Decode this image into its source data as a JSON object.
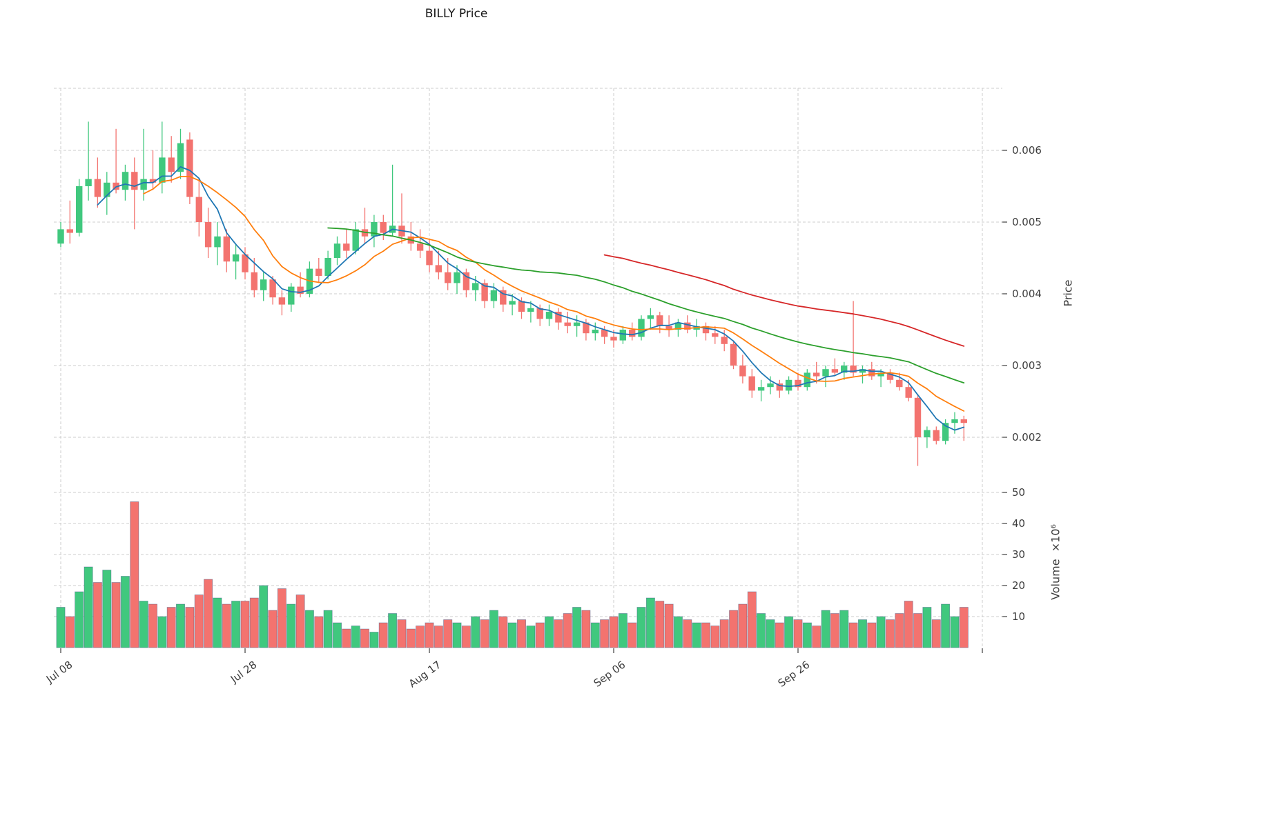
{
  "title": "BILLY Price",
  "axes": {
    "price_label": "Price",
    "volume_label": "Volume  ×10⁶"
  },
  "chart_data": {
    "type": "candlestick_with_volume",
    "title": "BILLY Price",
    "x_axis": {
      "tick_positions": [
        0,
        20,
        40,
        60,
        80,
        100
      ],
      "tick_labels": [
        "Jul 08",
        "Jul 28",
        "Aug 17",
        "Sep 06",
        "Sep 26",
        ""
      ]
    },
    "price_axis": {
      "label": "Price",
      "tick_values": [
        0.002,
        0.003,
        0.004,
        0.005,
        0.006
      ],
      "tick_labels": [
        "0.002",
        "0.003",
        "0.004",
        "0.005",
        "0.006"
      ]
    },
    "volume_axis": {
      "label": "Volume  ×10⁶",
      "unit": "1e6",
      "tick_values": [
        10,
        20,
        30,
        40,
        50
      ],
      "tick_labels": [
        "10",
        "20",
        "30",
        "40",
        "50"
      ]
    },
    "candles": {
      "open": [
        0.0047,
        0.0049,
        0.00485,
        0.0055,
        0.0056,
        0.00535,
        0.00555,
        0.00545,
        0.0057,
        0.00545,
        0.0056,
        0.00555,
        0.0059,
        0.0057,
        0.00615,
        0.00535,
        0.005,
        0.00465,
        0.0048,
        0.00445,
        0.00455,
        0.0043,
        0.00405,
        0.0042,
        0.00395,
        0.00385,
        0.0041,
        0.004,
        0.00435,
        0.00425,
        0.0045,
        0.0047,
        0.0046,
        0.0049,
        0.0048,
        0.005,
        0.00485,
        0.00495,
        0.0048,
        0.0047,
        0.0046,
        0.0044,
        0.0043,
        0.00415,
        0.0043,
        0.00405,
        0.00415,
        0.0039,
        0.00405,
        0.00385,
        0.0039,
        0.00375,
        0.0038,
        0.00365,
        0.00375,
        0.0036,
        0.00355,
        0.0036,
        0.00345,
        0.0035,
        0.0034,
        0.00335,
        0.0035,
        0.0034,
        0.00365,
        0.0037,
        0.00355,
        0.0035,
        0.0036,
        0.0035,
        0.00355,
        0.00345,
        0.0034,
        0.0033,
        0.003,
        0.00285,
        0.00265,
        0.0027,
        0.00275,
        0.00265,
        0.0028,
        0.0027,
        0.0029,
        0.00285,
        0.00295,
        0.0029,
        0.003,
        0.0029,
        0.00295,
        0.00285,
        0.0029,
        0.0028,
        0.0027,
        0.00255,
        0.002,
        0.0021,
        0.00195,
        0.0022,
        0.00225
      ],
      "high": [
        0.005,
        0.0053,
        0.0056,
        0.0064,
        0.0059,
        0.0057,
        0.0063,
        0.0058,
        0.0059,
        0.0063,
        0.006,
        0.0064,
        0.0062,
        0.0063,
        0.00625,
        0.0056,
        0.0052,
        0.005,
        0.0049,
        0.0047,
        0.00465,
        0.0045,
        0.0043,
        0.00425,
        0.00405,
        0.00415,
        0.0043,
        0.00445,
        0.0045,
        0.0046,
        0.0048,
        0.0049,
        0.005,
        0.0052,
        0.0051,
        0.0051,
        0.0058,
        0.0054,
        0.005,
        0.0049,
        0.00475,
        0.0046,
        0.0045,
        0.0044,
        0.00435,
        0.00425,
        0.0042,
        0.00415,
        0.0041,
        0.004,
        0.00395,
        0.0039,
        0.00385,
        0.00385,
        0.0038,
        0.00375,
        0.0037,
        0.00365,
        0.0036,
        0.00355,
        0.0035,
        0.00355,
        0.0036,
        0.0037,
        0.0038,
        0.00375,
        0.0037,
        0.00365,
        0.0037,
        0.00365,
        0.0036,
        0.00355,
        0.0035,
        0.00335,
        0.00315,
        0.00295,
        0.0028,
        0.00285,
        0.0028,
        0.00285,
        0.0029,
        0.00295,
        0.00305,
        0.003,
        0.0031,
        0.00305,
        0.0039,
        0.003,
        0.00305,
        0.00295,
        0.00295,
        0.0029,
        0.0028,
        0.0026,
        0.00215,
        0.00215,
        0.00225,
        0.00235,
        0.0023
      ],
      "low": [
        0.00465,
        0.0047,
        0.0048,
        0.0053,
        0.0052,
        0.0051,
        0.0054,
        0.0053,
        0.0049,
        0.0053,
        0.00545,
        0.0054,
        0.00555,
        0.0056,
        0.00525,
        0.0048,
        0.0045,
        0.0044,
        0.0043,
        0.0042,
        0.0042,
        0.00395,
        0.0039,
        0.00385,
        0.0037,
        0.00375,
        0.00395,
        0.00395,
        0.00415,
        0.0042,
        0.0044,
        0.0045,
        0.00455,
        0.0047,
        0.00465,
        0.00475,
        0.0048,
        0.0047,
        0.0046,
        0.0045,
        0.0043,
        0.0042,
        0.00405,
        0.004,
        0.00395,
        0.0039,
        0.0038,
        0.0038,
        0.00375,
        0.0037,
        0.00365,
        0.0036,
        0.00355,
        0.00355,
        0.0035,
        0.00345,
        0.0034,
        0.00335,
        0.00335,
        0.0033,
        0.00325,
        0.0033,
        0.00335,
        0.00335,
        0.0035,
        0.00345,
        0.0034,
        0.0034,
        0.00345,
        0.0034,
        0.00335,
        0.0033,
        0.0032,
        0.00295,
        0.00275,
        0.00255,
        0.0025,
        0.0026,
        0.00255,
        0.0026,
        0.00265,
        0.00265,
        0.00275,
        0.0027,
        0.00285,
        0.0028,
        0.00285,
        0.00275,
        0.0028,
        0.0027,
        0.00275,
        0.00265,
        0.0025,
        0.0016,
        0.00185,
        0.0019,
        0.0019,
        0.00205,
        0.00195
      ],
      "close": [
        0.0049,
        0.00485,
        0.0055,
        0.0056,
        0.00535,
        0.00555,
        0.00545,
        0.0057,
        0.00545,
        0.0056,
        0.00555,
        0.0059,
        0.0057,
        0.0061,
        0.00535,
        0.005,
        0.00465,
        0.0048,
        0.00445,
        0.00455,
        0.0043,
        0.00405,
        0.0042,
        0.00395,
        0.00385,
        0.0041,
        0.004,
        0.00435,
        0.00425,
        0.0045,
        0.0047,
        0.0046,
        0.0049,
        0.0048,
        0.005,
        0.00485,
        0.00495,
        0.0048,
        0.0047,
        0.0046,
        0.0044,
        0.0043,
        0.00415,
        0.0043,
        0.00405,
        0.00415,
        0.0039,
        0.00405,
        0.00385,
        0.0039,
        0.00375,
        0.0038,
        0.00365,
        0.00375,
        0.0036,
        0.00355,
        0.0036,
        0.00345,
        0.0035,
        0.0034,
        0.00335,
        0.0035,
        0.0034,
        0.00365,
        0.0037,
        0.00355,
        0.0035,
        0.0036,
        0.0035,
        0.00355,
        0.00345,
        0.0034,
        0.0033,
        0.003,
        0.00285,
        0.00265,
        0.0027,
        0.00275,
        0.00265,
        0.0028,
        0.0027,
        0.0029,
        0.00285,
        0.00295,
        0.0029,
        0.003,
        0.0029,
        0.00295,
        0.00285,
        0.0029,
        0.0028,
        0.0027,
        0.00255,
        0.002,
        0.0021,
        0.00195,
        0.0022,
        0.00225,
        0.0022
      ]
    },
    "volume": [
      13,
      10,
      18,
      26,
      21,
      25,
      21,
      23,
      47,
      15,
      14,
      10,
      13,
      14,
      13,
      17,
      22,
      16,
      14,
      15,
      15,
      16,
      20,
      12,
      19,
      14,
      17,
      12,
      10,
      12,
      8,
      6,
      7,
      6,
      5,
      8,
      11,
      9,
      6,
      7,
      8,
      7,
      9,
      8,
      7,
      10,
      9,
      12,
      10,
      8,
      9,
      7,
      8,
      10,
      9,
      11,
      13,
      12,
      8,
      9,
      10,
      11,
      8,
      13,
      16,
      15,
      14,
      10,
      9,
      8,
      8,
      7,
      9,
      12,
      14,
      18,
      11,
      9,
      8,
      10,
      9,
      8,
      7,
      12,
      11,
      12,
      8,
      9,
      8,
      10,
      9,
      11,
      15,
      11,
      13,
      9,
      14,
      10,
      13
    ],
    "moving_averages": [
      {
        "name": "SMA 5",
        "window": 5,
        "color": "#1f77b4"
      },
      {
        "name": "SMA 10",
        "window": 10,
        "color": "#ff7f0e"
      },
      {
        "name": "SMA 30",
        "window": 30,
        "color": "#2ca02c"
      },
      {
        "name": "SMA 60",
        "window": 60,
        "color": "#d62728"
      }
    ],
    "colors": {
      "up": "#40c87e",
      "down": "#f3736f",
      "grid": "#cccccc",
      "tick_text": "#3d3d3d",
      "volume_bar_edge": "rgba(60,85,130,0.5)"
    }
  }
}
